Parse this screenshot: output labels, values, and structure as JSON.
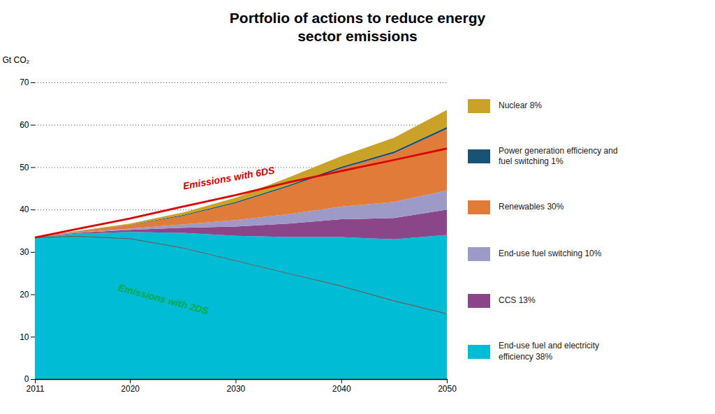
{
  "chart_data": {
    "type": "area",
    "title": "Portfolio of actions to reduce energy\nsector emissions",
    "ylabel": "Gt CO₂",
    "x": [
      2011,
      2015,
      2020,
      2025,
      2030,
      2035,
      2040,
      2045,
      2050
    ],
    "xlim": [
      2011,
      2050
    ],
    "xticks": [
      2011,
      2020,
      2030,
      2040,
      2050
    ],
    "ylim": [
      0,
      70
    ],
    "yticks": [
      0,
      10,
      20,
      30,
      40,
      50,
      60,
      70
    ],
    "grid": true,
    "stacked": true,
    "legend": "right",
    "series": [
      {
        "type": "area",
        "color": "#00BCD4",
        "values": [
          33.5,
          33.8,
          33.2,
          31.0,
          28.0,
          25.0,
          22.0,
          18.5,
          15.5
        ]
      },
      {
        "name": "End-use fuel and electricity\nefficiency 38%",
        "type": "area",
        "color": "#00BCD4",
        "values": [
          0.0,
          0.5,
          1.5,
          3.5,
          5.8,
          8.5,
          11.5,
          14.5,
          18.5
        ]
      },
      {
        "name": "CCS 13%",
        "type": "area",
        "color": "#8B4589",
        "values": [
          0.0,
          0.2,
          0.5,
          1.2,
          2.2,
          3.2,
          4.2,
          5.0,
          6.0
        ]
      },
      {
        "name": "End-use fuel switching 10%",
        "type": "area",
        "color": "#9E9AC8",
        "values": [
          0.0,
          0.1,
          0.3,
          0.8,
          1.5,
          2.2,
          3.0,
          3.8,
          4.5
        ]
      },
      {
        "name": "Renewables 30%",
        "type": "area",
        "color": "#E07B39",
        "values": [
          0.0,
          0.2,
          0.8,
          2.0,
          4.0,
          6.5,
          9.0,
          11.5,
          14.5
        ]
      },
      {
        "name": "Power generation efficiency and\nfuel switching 1%",
        "type": "area",
        "color": "#1A5276",
        "values": [
          0.0,
          0.05,
          0.1,
          0.2,
          0.3,
          0.35,
          0.4,
          0.45,
          0.5
        ]
      },
      {
        "name": "Nuclear 8%",
        "type": "area",
        "color": "#C9A227",
        "values": [
          0.0,
          0.1,
          0.3,
          0.6,
          1.0,
          1.8,
          2.5,
          3.2,
          4.0
        ]
      },
      {
        "type": "line",
        "color": "#606060",
        "values": [
          33.5,
          33.8,
          33.2,
          31.0,
          28.0,
          25.0,
          22.0,
          18.5,
          15.5
        ]
      },
      {
        "type": "line",
        "color": "#DD0000",
        "values": [
          33.5,
          35.5,
          38.0,
          40.8,
          43.5,
          46.5,
          49.2,
          51.8,
          54.5
        ]
      }
    ],
    "annotations": [
      {
        "text": "Emissions with 6DS",
        "color": "#DD0000"
      },
      {
        "text": "Emissions with 2DS",
        "color": "#00AA44"
      }
    ]
  }
}
